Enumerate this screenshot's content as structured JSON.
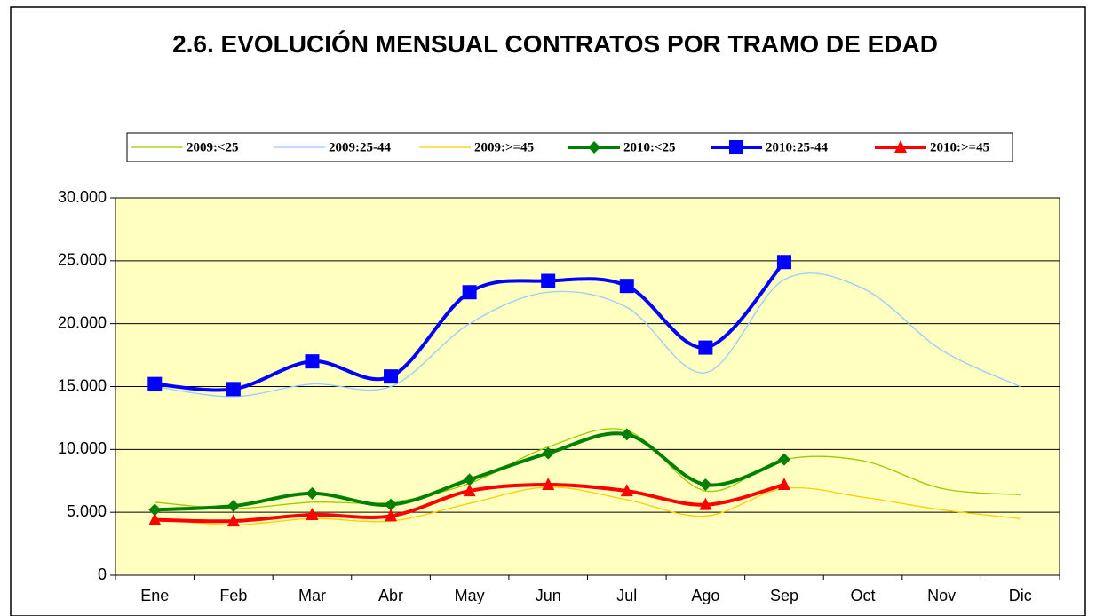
{
  "chart_data": {
    "type": "line",
    "title": "2.6. EVOLUCIÓN MENSUAL CONTRATOS POR TRAMO DE EDAD",
    "categories": [
      "Ene",
      "Feb",
      "Mar",
      "Abr",
      "May",
      "Jun",
      "Jul",
      "Ago",
      "Sep",
      "Oct",
      "Nov",
      "Dic"
    ],
    "ylim": [
      0,
      30000
    ],
    "yticks": [
      0,
      {
        "value": 5000,
        "label": "5.000"
      },
      {
        "value": 10000,
        "label": "10.000"
      },
      {
        "value": 15000,
        "label": "15.000"
      },
      {
        "value": 20000,
        "label": "20.000"
      },
      {
        "value": 25000,
        "label": "25.000"
      },
      {
        "value": 30000,
        "label": "30.000"
      }
    ],
    "grid": true,
    "legend": "top",
    "series": [
      {
        "name": "2009:<25",
        "color": "#99cc00",
        "values": [
          5800,
          5300,
          5800,
          5800,
          7300,
          10200,
          11500,
          6700,
          9200,
          9100,
          6900,
          6400
        ]
      },
      {
        "name": "2009:25-44",
        "color": "#99ccff",
        "values": [
          15000,
          14200,
          15200,
          15000,
          20000,
          22500,
          21300,
          16100,
          23500,
          22800,
          17900,
          15000
        ]
      },
      {
        "name": "2009:>=45",
        "color": "#ffcc00",
        "values": [
          4500,
          4000,
          4500,
          4300,
          5700,
          7000,
          6000,
          4700,
          6900,
          6200,
          5200,
          4500
        ]
      },
      {
        "name": "2010:<25",
        "color": "#008000",
        "marker": "diamond",
        "values": [
          5200,
          5500,
          6500,
          5600,
          7600,
          9700,
          11200,
          7200,
          9200,
          null,
          null,
          null
        ]
      },
      {
        "name": "2010:25-44",
        "color": "#0000ff",
        "marker": "square",
        "values": [
          15200,
          14800,
          17000,
          15800,
          22500,
          23400,
          23000,
          18100,
          24900,
          null,
          null,
          null
        ]
      },
      {
        "name": "2010:>=45",
        "color": "#ff0000",
        "marker": "triangle",
        "values": [
          4400,
          4300,
          4800,
          4700,
          6700,
          7200,
          6700,
          5600,
          7200,
          null,
          null,
          null
        ]
      }
    ]
  }
}
